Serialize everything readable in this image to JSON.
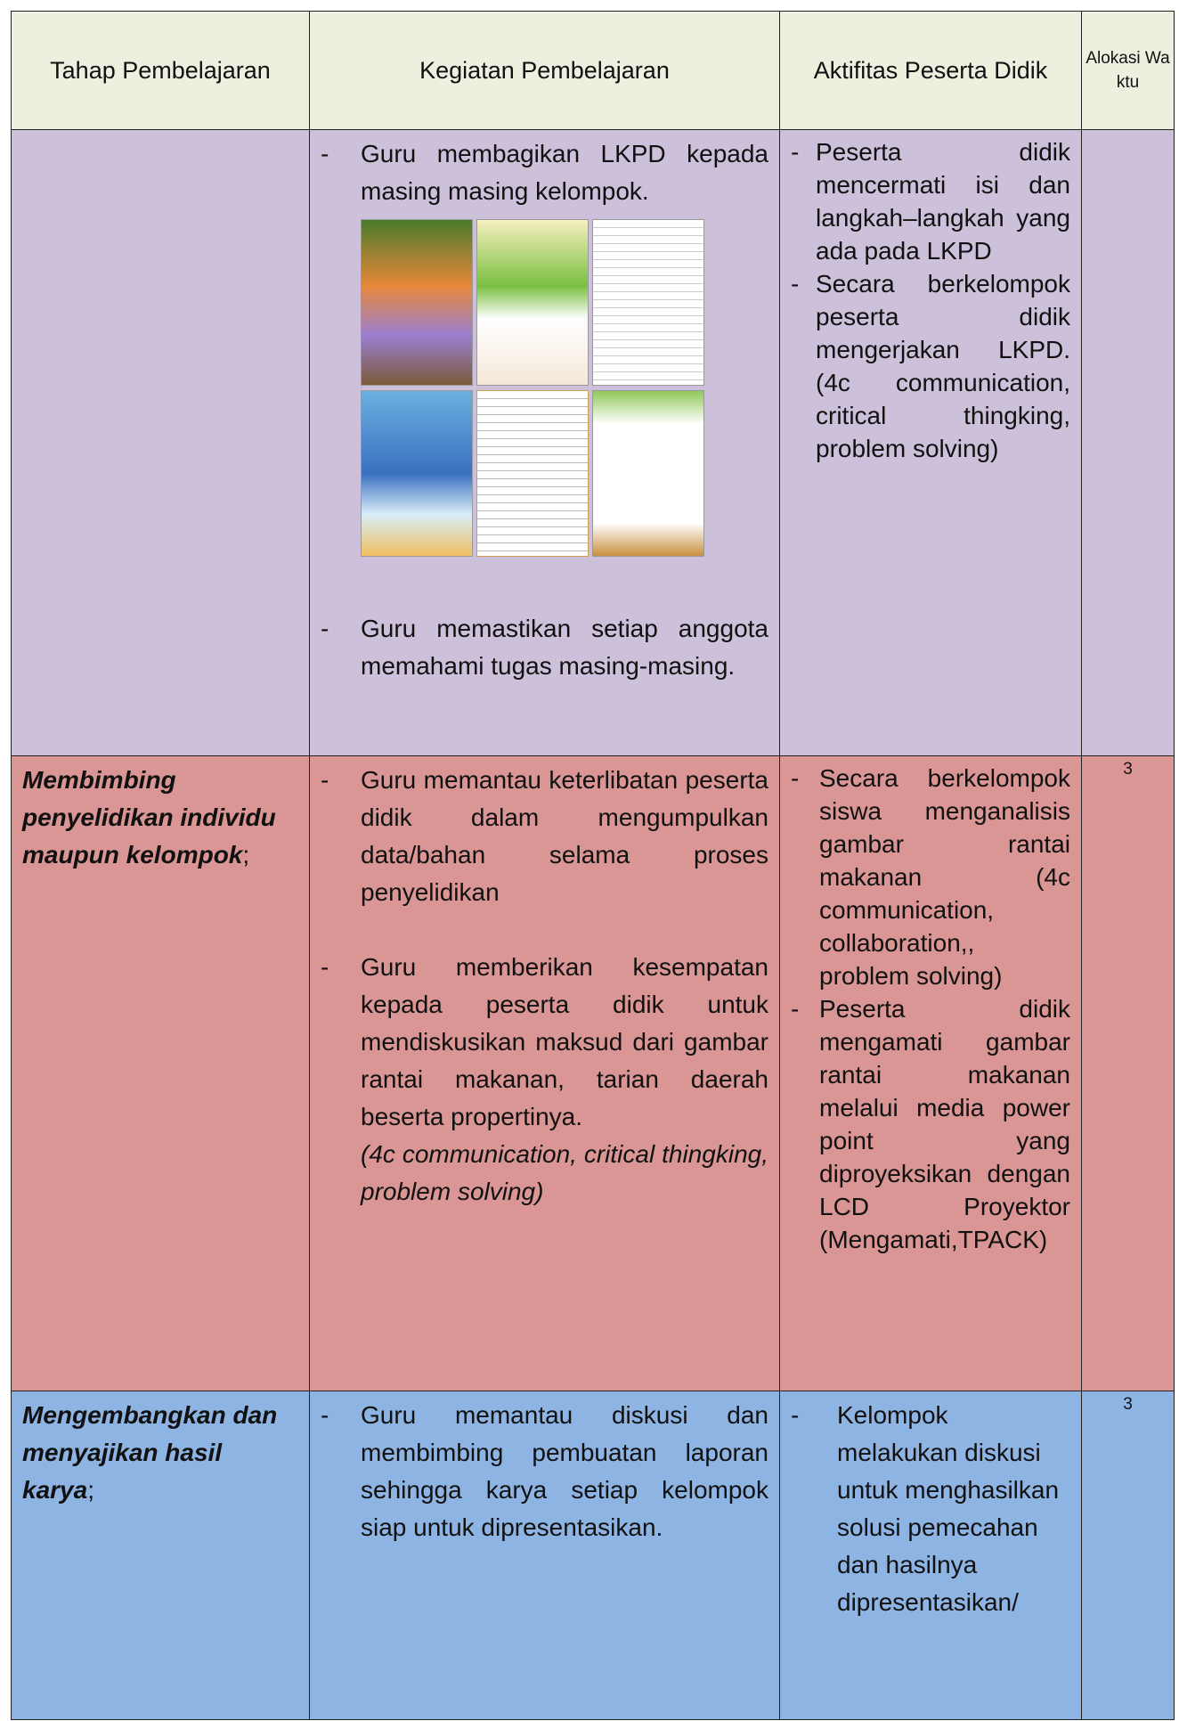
{
  "table": {
    "header": [
      "Tahap Pembelajaran",
      "Kegiatan Pembelajaran",
      "Aktifitas Peserta Didik",
      "Alokasi Waktu"
    ],
    "rows": [
      {
        "activities": [
          {
            "text": "Guru membagikan LKPD kepada masing masing kelompok."
          },
          {
            "text": "Guru memastikan setiap anggota memahami tugas masing-masing."
          }
        ],
        "student": [
          "Peserta didik mencermati isi dan langkah–langkah yang ada pada LKPD",
          "Secara berkelompok peserta didik mengerjakan LKPD. (4c communication, critical thingking, problem solving)"
        ]
      },
      {
        "stage": "Membimbing penyelidikan individu maupun kelompok",
        "stage_punct": ";",
        "activities": [
          {
            "text": "Guru memantau keterlibatan peserta didik dalam mengumpulkan data/bahan selama proses penyelidikan"
          },
          {
            "text": "Guru memberikan kesempatan kepada peserta didik untuk mendiskusikan maksud dari gambar rantai makanan, tarian daerah beserta propertinya.",
            "note": "(4c communication, critical thingking, problem solving)"
          }
        ],
        "student": [
          "Secara berkelompok siswa menganalisis gambar rantai makanan (4c communication, collaboration,, problem solving)",
          "Peserta didik mengamati gambar rantai makanan melalui media power point yang diproyeksikan dengan LCD Proyektor (Mengamati,TPACK)"
        ],
        "time": "3"
      },
      {
        "stage": "Mengembangkan dan menyajikan hasil karya",
        "stage_punct": ";",
        "activities": [
          {
            "text": "Guru memantau diskusi dan membimbing pembuatan laporan sehingga karya setiap kelompok siap untuk dipresentasikan."
          }
        ],
        "student": [
          "Kelompok melakukan diskusi untuk menghasilkan solusi pemecahan dan hasilnya dipresentasikan/"
        ],
        "time": "3"
      }
    ]
  }
}
